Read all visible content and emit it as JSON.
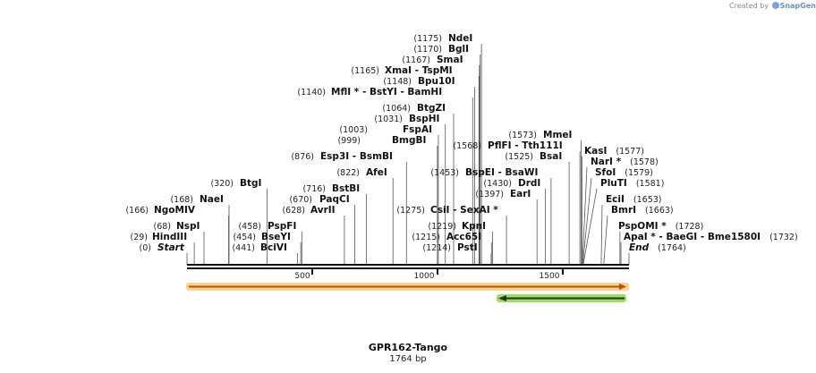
{
  "credit": {
    "created_by": "Created by",
    "brand": "SnapGene"
  },
  "plasmid": {
    "name": "GPR162-Tango",
    "length_label": "1764 bp",
    "length": 1764
  },
  "axis": {
    "ticks": [
      "500",
      "1000",
      "1500"
    ]
  },
  "sites": [
    {
      "pos": "(0)",
      "name": "Start",
      "italic": true
    },
    {
      "pos": "(29)",
      "name": "HindIII"
    },
    {
      "pos": "(68)",
      "name": "NspI"
    },
    {
      "pos": "(166)",
      "name": "NgoMIV"
    },
    {
      "pos": "(168)",
      "name": "NaeI"
    },
    {
      "pos": "(320)",
      "name": "BtgI"
    },
    {
      "pos": "(441)",
      "name": "BciVI"
    },
    {
      "pos": "(454)",
      "name": "BseYI"
    },
    {
      "pos": "(458)",
      "name": "PspFI"
    },
    {
      "pos": "(628)",
      "name": "AvrII"
    },
    {
      "pos": "(670)",
      "name": "PaqCI"
    },
    {
      "pos": "(716)",
      "name": "BstBI"
    },
    {
      "pos": "(822)",
      "name": "AfeI"
    },
    {
      "pos": "(876)",
      "name": "Esp3I   - BsmBI"
    },
    {
      "pos": "(999)",
      "name": "BmgBI"
    },
    {
      "pos": "(1003)",
      "name": "FspAI"
    },
    {
      "pos": "(1031)",
      "name": "BspHI"
    },
    {
      "pos": "(1064)",
      "name": "BtgZI"
    },
    {
      "pos": "(1140)",
      "name": "MflI * - BstYI   - BamHI"
    },
    {
      "pos": "(1148)",
      "name": "Bpu10I"
    },
    {
      "pos": "(1165)",
      "name": "XmaI   - TspMI"
    },
    {
      "pos": "(1167)",
      "name": "SmaI"
    },
    {
      "pos": "(1170)",
      "name": "BglI"
    },
    {
      "pos": "(1175)",
      "name": "NdeI"
    },
    {
      "pos": "(1275)",
      "name": "CsiI   - SexAI *"
    },
    {
      "pos": "(1214)",
      "name": "PstI"
    },
    {
      "pos": "(1215)",
      "name": "Acc65I"
    },
    {
      "pos": "(1219)",
      "name": "KpnI"
    },
    {
      "pos": "(1397)",
      "name": "EarI"
    },
    {
      "pos": "(1430)",
      "name": "DrdI"
    },
    {
      "pos": "(1453)",
      "name": "BspEI   - BsaWI"
    },
    {
      "pos": "(1525)",
      "name": "BsaI"
    },
    {
      "pos": "(1568)",
      "name": "PflFI   - Tth111I"
    },
    {
      "pos": "(1573)",
      "name": "MmeI"
    },
    {
      "pos": "(1577)",
      "name": "KasI"
    },
    {
      "pos": "(1578)",
      "name": "NarI *"
    },
    {
      "pos": "(1579)",
      "name": "SfoI"
    },
    {
      "pos": "(1581)",
      "name": "PluTI"
    },
    {
      "pos": "(1653)",
      "name": "EciI"
    },
    {
      "pos": "(1663)",
      "name": "BmrI"
    },
    {
      "pos": "(1728)",
      "name": "PspOMI *"
    },
    {
      "pos": "(1732)",
      "name": "ApaI * - BaeGI   - Bme1580I"
    },
    {
      "pos": "(1764)",
      "name": "End",
      "italic": true
    }
  ]
}
